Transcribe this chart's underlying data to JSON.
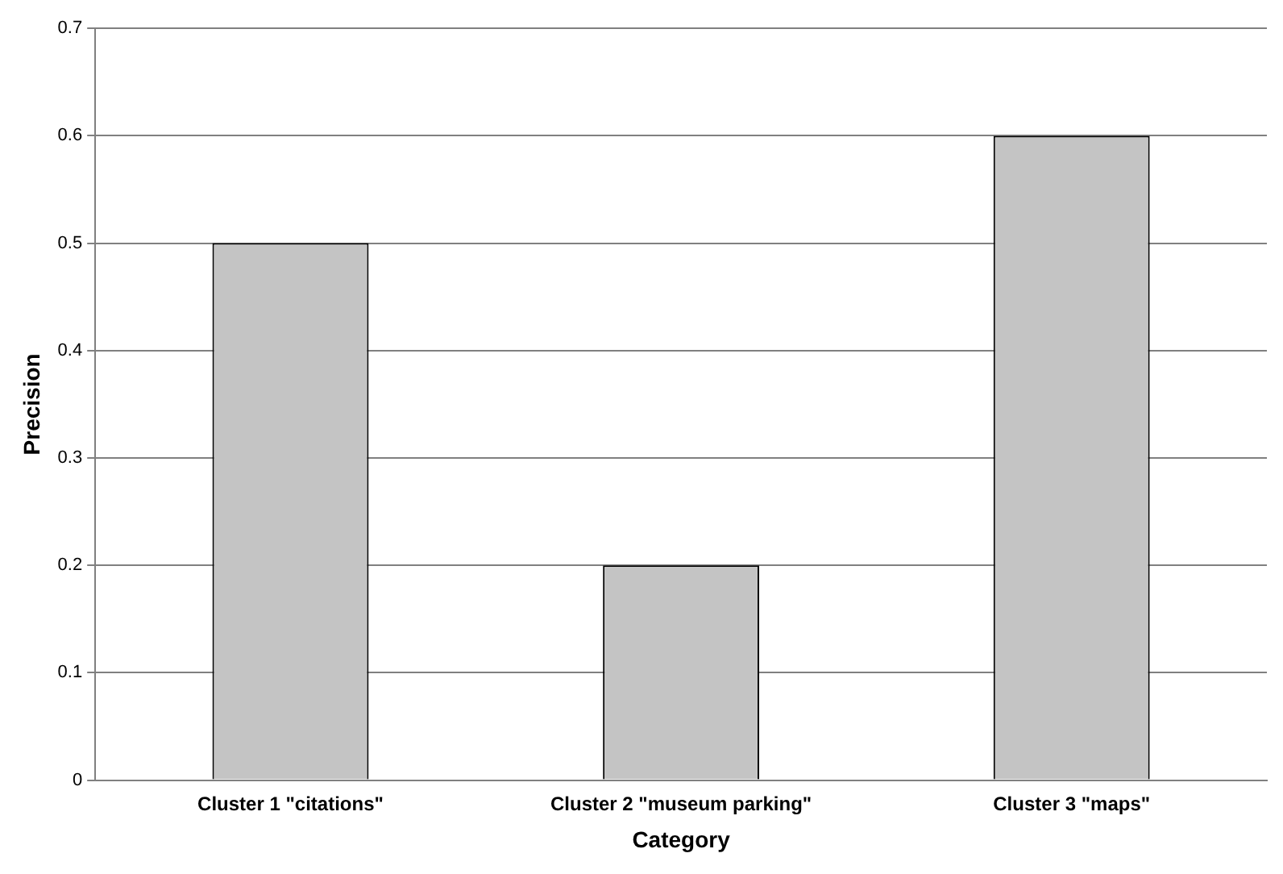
{
  "chart_data": {
    "type": "bar",
    "xlabel": "Category",
    "ylabel": "Precision",
    "categories": [
      "Cluster 1 \"citations\"",
      "Cluster 2 \"museum parking\"",
      "Cluster 3 \"maps\""
    ],
    "values": [
      0.5,
      0.2,
      0.6
    ],
    "color": "#c4c4c4",
    "ylim": [
      0,
      0.7
    ],
    "yticks": [
      0,
      0.1,
      0.2,
      0.3,
      0.4,
      0.5,
      0.6,
      0.7
    ],
    "grid": "y",
    "legend": false
  }
}
